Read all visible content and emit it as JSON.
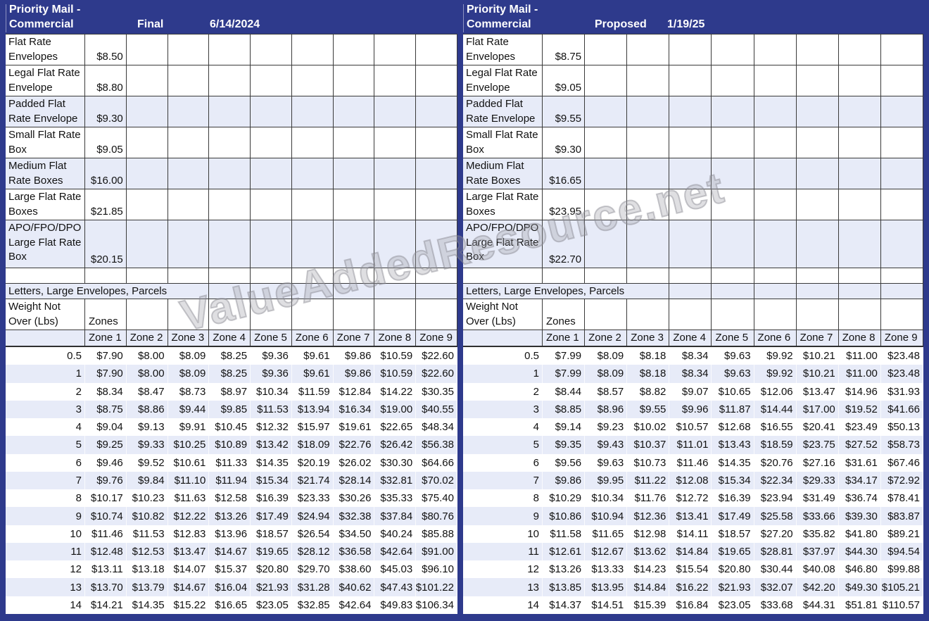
{
  "watermark": "ValueAddedResource.net",
  "tables": [
    {
      "title_line1": "Priority Mail -",
      "title_line2": "Commercial",
      "version_label": "Final",
      "effective_date": "6/14/2024",
      "flat_rates": [
        {
          "label": "Flat Rate Envelopes",
          "price": "$8.50",
          "shaded": false
        },
        {
          "label": "Legal Flat Rate Envelope",
          "price": "$8.80",
          "shaded": false
        },
        {
          "label": "Padded Flat Rate Envelope",
          "price": "$9.30",
          "shaded": true
        },
        {
          "label": "Small Flat Rate Box",
          "price": "$9.05",
          "shaded": false
        },
        {
          "label": "Medium Flat Rate Boxes",
          "price": "$16.00",
          "shaded": true
        },
        {
          "label": "Large Flat Rate Boxes",
          "price": "$21.85",
          "shaded": false
        },
        {
          "label": "APO/FPO/DPO Large Flat Rate Box",
          "price": "$20.15",
          "shaded": true
        }
      ],
      "section_label": "Letters, Large Envelopes, Parcels",
      "weight_label": "Weight Not Over (Lbs)",
      "zones_label": "Zones",
      "zone_headers": [
        "Zone 1",
        "Zone 2",
        "Zone 3",
        "Zone 4",
        "Zone 5",
        "Zone 6",
        "Zone 7",
        "Zone 8",
        "Zone 9"
      ],
      "weight_rows": [
        {
          "weight": "0.5",
          "prices": [
            "$7.90",
            "$8.00",
            "$8.09",
            "$8.25",
            "$9.36",
            "$9.61",
            "$9.86",
            "$10.59",
            "$22.60"
          ]
        },
        {
          "weight": "1",
          "prices": [
            "$7.90",
            "$8.00",
            "$8.09",
            "$8.25",
            "$9.36",
            "$9.61",
            "$9.86",
            "$10.59",
            "$22.60"
          ]
        },
        {
          "weight": "2",
          "prices": [
            "$8.34",
            "$8.47",
            "$8.73",
            "$8.97",
            "$10.34",
            "$11.59",
            "$12.84",
            "$14.22",
            "$30.35"
          ]
        },
        {
          "weight": "3",
          "prices": [
            "$8.75",
            "$8.86",
            "$9.44",
            "$9.85",
            "$11.53",
            "$13.94",
            "$16.34",
            "$19.00",
            "$40.55"
          ]
        },
        {
          "weight": "4",
          "prices": [
            "$9.04",
            "$9.13",
            "$9.91",
            "$10.45",
            "$12.32",
            "$15.97",
            "$19.61",
            "$22.65",
            "$48.34"
          ]
        },
        {
          "weight": "5",
          "prices": [
            "$9.25",
            "$9.33",
            "$10.25",
            "$10.89",
            "$13.42",
            "$18.09",
            "$22.76",
            "$26.42",
            "$56.38"
          ]
        },
        {
          "weight": "6",
          "prices": [
            "$9.46",
            "$9.52",
            "$10.61",
            "$11.33",
            "$14.35",
            "$20.19",
            "$26.02",
            "$30.30",
            "$64.66"
          ]
        },
        {
          "weight": "7",
          "prices": [
            "$9.76",
            "$9.84",
            "$11.10",
            "$11.94",
            "$15.34",
            "$21.74",
            "$28.14",
            "$32.81",
            "$70.02"
          ]
        },
        {
          "weight": "8",
          "prices": [
            "$10.17",
            "$10.23",
            "$11.63",
            "$12.58",
            "$16.39",
            "$23.33",
            "$30.26",
            "$35.33",
            "$75.40"
          ]
        },
        {
          "weight": "9",
          "prices": [
            "$10.74",
            "$10.82",
            "$12.22",
            "$13.26",
            "$17.49",
            "$24.94",
            "$32.38",
            "$37.84",
            "$80.76"
          ]
        },
        {
          "weight": "10",
          "prices": [
            "$11.46",
            "$11.53",
            "$12.83",
            "$13.96",
            "$18.57",
            "$26.54",
            "$34.50",
            "$40.24",
            "$85.88"
          ]
        },
        {
          "weight": "11",
          "prices": [
            "$12.48",
            "$12.53",
            "$13.47",
            "$14.67",
            "$19.65",
            "$28.12",
            "$36.58",
            "$42.64",
            "$91.00"
          ]
        },
        {
          "weight": "12",
          "prices": [
            "$13.11",
            "$13.18",
            "$14.07",
            "$15.37",
            "$20.80",
            "$29.70",
            "$38.60",
            "$45.03",
            "$96.10"
          ]
        },
        {
          "weight": "13",
          "prices": [
            "$13.70",
            "$13.79",
            "$14.67",
            "$16.04",
            "$21.93",
            "$31.28",
            "$40.62",
            "$47.43",
            "$101.22"
          ]
        },
        {
          "weight": "14",
          "prices": [
            "$14.21",
            "$14.35",
            "$15.22",
            "$16.65",
            "$23.05",
            "$32.85",
            "$42.64",
            "$49.83",
            "$106.34"
          ]
        }
      ]
    },
    {
      "title_line1": "Priority Mail -",
      "title_line2": "Commercial",
      "version_label": "Proposed",
      "effective_date": "1/19/25",
      "flat_rates": [
        {
          "label": "Flat Rate Envelopes",
          "price": "$8.75",
          "shaded": false
        },
        {
          "label": "Legal Flat Rate Envelope",
          "price": "$9.05",
          "shaded": false
        },
        {
          "label": "Padded Flat Rate Envelope",
          "price": "$9.55",
          "shaded": true
        },
        {
          "label": "Small Flat Rate Box",
          "price": "$9.30",
          "shaded": false
        },
        {
          "label": "Medium Flat Rate Boxes",
          "price": "$16.65",
          "shaded": true
        },
        {
          "label": "Large Flat Rate Boxes",
          "price": "$23.95",
          "shaded": false
        },
        {
          "label": "APO/FPO/DPO Large Flat Rate Box",
          "price": "$22.70",
          "shaded": true
        }
      ],
      "section_label": "Letters, Large Envelopes, Parcels",
      "weight_label": "Weight Not Over (Lbs)",
      "zones_label": "Zones",
      "zone_headers": [
        "Zone 1",
        "Zone 2",
        "Zone 3",
        "Zone 4",
        "Zone 5",
        "Zone 6",
        "Zone 7",
        "Zone 8",
        "Zone 9"
      ],
      "weight_rows": [
        {
          "weight": "0.5",
          "prices": [
            "$7.99",
            "$8.09",
            "$8.18",
            "$8.34",
            "$9.63",
            "$9.92",
            "$10.21",
            "$11.00",
            "$23.48"
          ]
        },
        {
          "weight": "1",
          "prices": [
            "$7.99",
            "$8.09",
            "$8.18",
            "$8.34",
            "$9.63",
            "$9.92",
            "$10.21",
            "$11.00",
            "$23.48"
          ]
        },
        {
          "weight": "2",
          "prices": [
            "$8.44",
            "$8.57",
            "$8.82",
            "$9.07",
            "$10.65",
            "$12.06",
            "$13.47",
            "$14.96",
            "$31.93"
          ]
        },
        {
          "weight": "3",
          "prices": [
            "$8.85",
            "$8.96",
            "$9.55",
            "$9.96",
            "$11.87",
            "$14.44",
            "$17.00",
            "$19.52",
            "$41.66"
          ]
        },
        {
          "weight": "4",
          "prices": [
            "$9.14",
            "$9.23",
            "$10.02",
            "$10.57",
            "$12.68",
            "$16.55",
            "$20.41",
            "$23.49",
            "$50.13"
          ]
        },
        {
          "weight": "5",
          "prices": [
            "$9.35",
            "$9.43",
            "$10.37",
            "$11.01",
            "$13.43",
            "$18.59",
            "$23.75",
            "$27.52",
            "$58.73"
          ]
        },
        {
          "weight": "6",
          "prices": [
            "$9.56",
            "$9.63",
            "$10.73",
            "$11.46",
            "$14.35",
            "$20.76",
            "$27.16",
            "$31.61",
            "$67.46"
          ]
        },
        {
          "weight": "7",
          "prices": [
            "$9.86",
            "$9.95",
            "$11.22",
            "$12.08",
            "$15.34",
            "$22.34",
            "$29.33",
            "$34.17",
            "$72.92"
          ]
        },
        {
          "weight": "8",
          "prices": [
            "$10.29",
            "$10.34",
            "$11.76",
            "$12.72",
            "$16.39",
            "$23.94",
            "$31.49",
            "$36.74",
            "$78.41"
          ]
        },
        {
          "weight": "9",
          "prices": [
            "$10.86",
            "$10.94",
            "$12.36",
            "$13.41",
            "$17.49",
            "$25.58",
            "$33.66",
            "$39.30",
            "$83.87"
          ]
        },
        {
          "weight": "10",
          "prices": [
            "$11.58",
            "$11.65",
            "$12.98",
            "$14.11",
            "$18.57",
            "$27.20",
            "$35.82",
            "$41.80",
            "$89.21"
          ]
        },
        {
          "weight": "11",
          "prices": [
            "$12.61",
            "$12.67",
            "$13.62",
            "$14.84",
            "$19.65",
            "$28.81",
            "$37.97",
            "$44.30",
            "$94.54"
          ]
        },
        {
          "weight": "12",
          "prices": [
            "$13.26",
            "$13.33",
            "$14.23",
            "$15.54",
            "$20.80",
            "$30.44",
            "$40.08",
            "$46.80",
            "$99.88"
          ]
        },
        {
          "weight": "13",
          "prices": [
            "$13.85",
            "$13.95",
            "$14.84",
            "$16.22",
            "$21.93",
            "$32.07",
            "$42.20",
            "$49.30",
            "$105.21"
          ]
        },
        {
          "weight": "14",
          "prices": [
            "$14.37",
            "$14.51",
            "$15.39",
            "$16.84",
            "$23.05",
            "$33.68",
            "$44.31",
            "$51.81",
            "$110.57"
          ]
        }
      ]
    }
  ],
  "colors": {
    "frame_navy": "#2e3a8c",
    "band_lavender": "#e7ebf8",
    "grid_border": "#3a3a3a"
  }
}
